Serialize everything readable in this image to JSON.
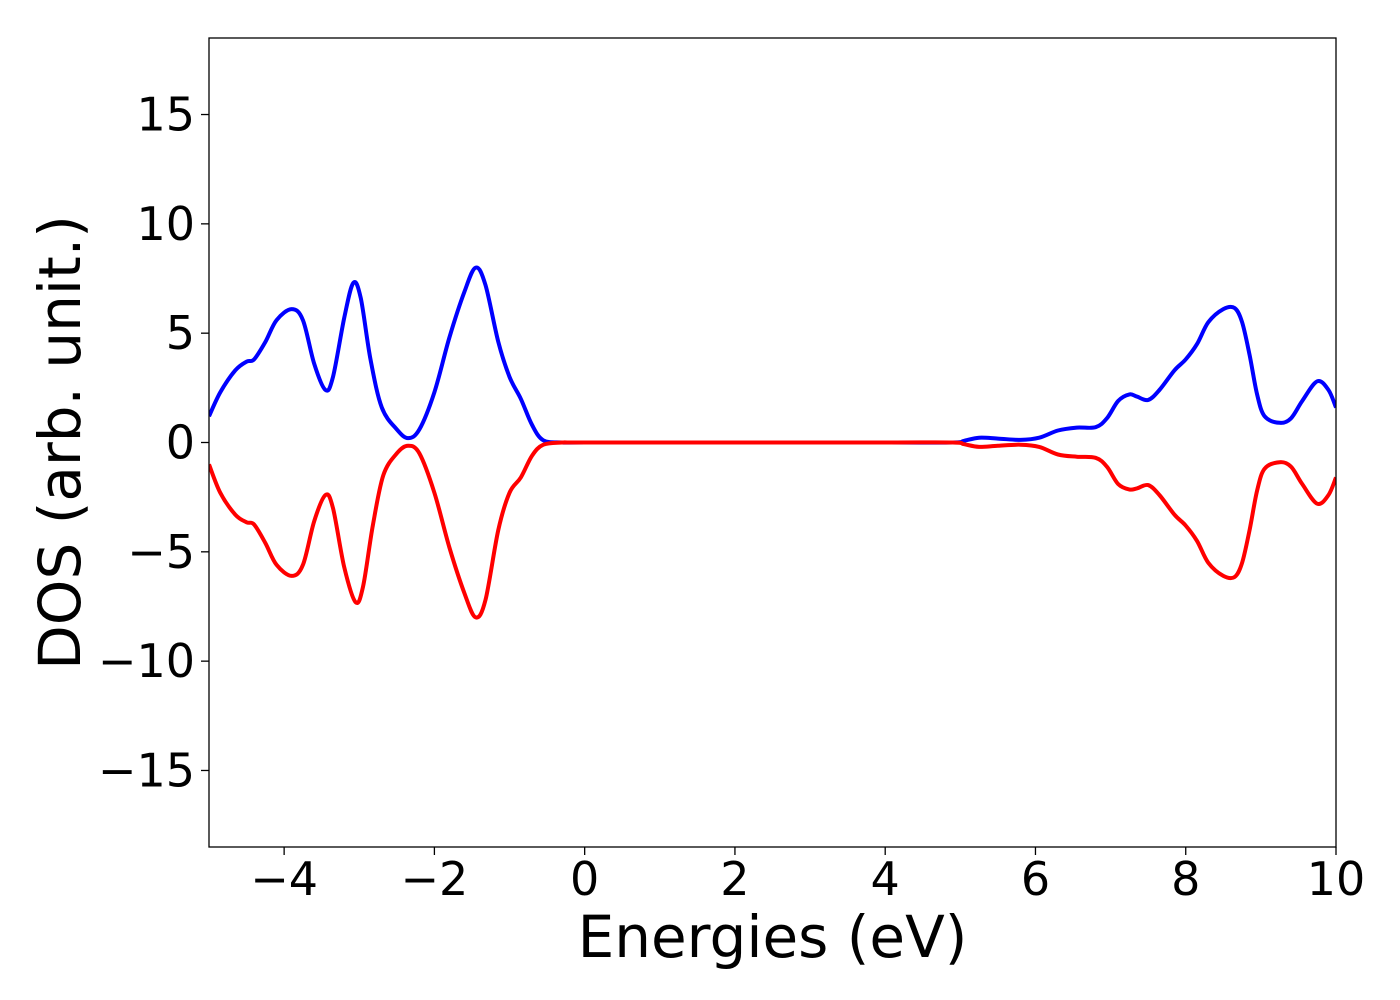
{
  "chart_data": {
    "type": "line",
    "title": "",
    "xlabel": "Energies (eV)",
    "ylabel": "DOS (arb. unit.)",
    "xlim": [
      -5,
      10
    ],
    "ylim": [
      -18.5,
      18.5
    ],
    "grid": false,
    "legend": "none",
    "x_ticks": [
      -4,
      -2,
      0,
      2,
      4,
      6,
      8,
      10
    ],
    "x_tick_labels": [
      "−4",
      "−2",
      "0",
      "2",
      "4",
      "6",
      "8",
      "10"
    ],
    "y_ticks": [
      -15,
      -10,
      -5,
      0,
      5,
      10,
      15
    ],
    "y_tick_labels": [
      "−15",
      "−10",
      "−5",
      "0",
      "5",
      "10",
      "15"
    ],
    "series": [
      {
        "color": "#0000ff",
        "points": [
          [
            -5.0,
            1.2
          ],
          [
            -4.85,
            2.3
          ],
          [
            -4.65,
            3.3
          ],
          [
            -4.5,
            3.7
          ],
          [
            -4.4,
            3.8
          ],
          [
            -4.25,
            4.6
          ],
          [
            -4.1,
            5.6
          ],
          [
            -3.9,
            6.1
          ],
          [
            -3.75,
            5.6
          ],
          [
            -3.6,
            3.6
          ],
          [
            -3.45,
            2.4
          ],
          [
            -3.35,
            3.0
          ],
          [
            -3.2,
            5.7
          ],
          [
            -3.08,
            7.3
          ],
          [
            -2.98,
            6.6
          ],
          [
            -2.85,
            3.8
          ],
          [
            -2.7,
            1.6
          ],
          [
            -2.5,
            0.6
          ],
          [
            -2.35,
            0.2
          ],
          [
            -2.2,
            0.6
          ],
          [
            -2.0,
            2.3
          ],
          [
            -1.8,
            4.8
          ],
          [
            -1.6,
            6.9
          ],
          [
            -1.45,
            8.0
          ],
          [
            -1.32,
            7.2
          ],
          [
            -1.15,
            4.6
          ],
          [
            -1.0,
            3.0
          ],
          [
            -0.85,
            2.0
          ],
          [
            -0.7,
            0.8
          ],
          [
            -0.55,
            0.1
          ],
          [
            -0.3,
            0.0
          ],
          [
            0.0,
            0.0
          ],
          [
            2.0,
            0.0
          ],
          [
            4.0,
            0.0
          ],
          [
            4.9,
            0.0
          ],
          [
            5.05,
            0.08
          ],
          [
            5.25,
            0.22
          ],
          [
            5.5,
            0.18
          ],
          [
            5.8,
            0.12
          ],
          [
            6.05,
            0.22
          ],
          [
            6.3,
            0.55
          ],
          [
            6.55,
            0.68
          ],
          [
            6.8,
            0.7
          ],
          [
            6.95,
            1.1
          ],
          [
            7.1,
            1.9
          ],
          [
            7.25,
            2.2
          ],
          [
            7.35,
            2.1
          ],
          [
            7.5,
            1.95
          ],
          [
            7.65,
            2.4
          ],
          [
            7.85,
            3.3
          ],
          [
            8.0,
            3.8
          ],
          [
            8.15,
            4.5
          ],
          [
            8.3,
            5.5
          ],
          [
            8.5,
            6.1
          ],
          [
            8.65,
            6.15
          ],
          [
            8.75,
            5.5
          ],
          [
            8.85,
            4.0
          ],
          [
            8.95,
            2.2
          ],
          [
            9.05,
            1.2
          ],
          [
            9.25,
            0.9
          ],
          [
            9.4,
            1.1
          ],
          [
            9.55,
            1.9
          ],
          [
            9.75,
            2.8
          ],
          [
            9.9,
            2.4
          ],
          [
            10.0,
            1.6
          ]
        ]
      },
      {
        "color": "#ff0000",
        "points": [
          [
            -5.0,
            -1.0
          ],
          [
            -4.85,
            -2.3
          ],
          [
            -4.65,
            -3.3
          ],
          [
            -4.5,
            -3.65
          ],
          [
            -4.4,
            -3.75
          ],
          [
            -4.25,
            -4.6
          ],
          [
            -4.1,
            -5.6
          ],
          [
            -3.9,
            -6.1
          ],
          [
            -3.75,
            -5.6
          ],
          [
            -3.6,
            -3.6
          ],
          [
            -3.45,
            -2.4
          ],
          [
            -3.35,
            -3.0
          ],
          [
            -3.2,
            -5.7
          ],
          [
            -3.05,
            -7.3
          ],
          [
            -2.95,
            -6.6
          ],
          [
            -2.82,
            -3.8
          ],
          [
            -2.68,
            -1.5
          ],
          [
            -2.5,
            -0.5
          ],
          [
            -2.35,
            -0.15
          ],
          [
            -2.2,
            -0.5
          ],
          [
            -2.0,
            -2.3
          ],
          [
            -1.8,
            -4.8
          ],
          [
            -1.6,
            -6.9
          ],
          [
            -1.45,
            -8.0
          ],
          [
            -1.32,
            -7.2
          ],
          [
            -1.15,
            -4.0
          ],
          [
            -1.0,
            -2.3
          ],
          [
            -0.85,
            -1.6
          ],
          [
            -0.7,
            -0.6
          ],
          [
            -0.55,
            -0.1
          ],
          [
            -0.3,
            0.0
          ],
          [
            0.0,
            0.0
          ],
          [
            2.0,
            0.0
          ],
          [
            4.0,
            0.0
          ],
          [
            4.9,
            0.0
          ],
          [
            5.05,
            -0.08
          ],
          [
            5.25,
            -0.2
          ],
          [
            5.5,
            -0.15
          ],
          [
            5.8,
            -0.1
          ],
          [
            6.05,
            -0.2
          ],
          [
            6.3,
            -0.55
          ],
          [
            6.55,
            -0.65
          ],
          [
            6.8,
            -0.7
          ],
          [
            6.95,
            -1.1
          ],
          [
            7.1,
            -1.9
          ],
          [
            7.25,
            -2.15
          ],
          [
            7.35,
            -2.1
          ],
          [
            7.5,
            -1.95
          ],
          [
            7.65,
            -2.4
          ],
          [
            7.85,
            -3.3
          ],
          [
            8.0,
            -3.8
          ],
          [
            8.15,
            -4.5
          ],
          [
            8.3,
            -5.5
          ],
          [
            8.5,
            -6.1
          ],
          [
            8.65,
            -6.15
          ],
          [
            8.75,
            -5.5
          ],
          [
            8.85,
            -4.0
          ],
          [
            8.95,
            -2.2
          ],
          [
            9.05,
            -1.2
          ],
          [
            9.25,
            -0.9
          ],
          [
            9.4,
            -1.1
          ],
          [
            9.55,
            -1.9
          ],
          [
            9.75,
            -2.8
          ],
          [
            9.9,
            -2.4
          ],
          [
            10.0,
            -1.6
          ]
        ]
      }
    ]
  }
}
